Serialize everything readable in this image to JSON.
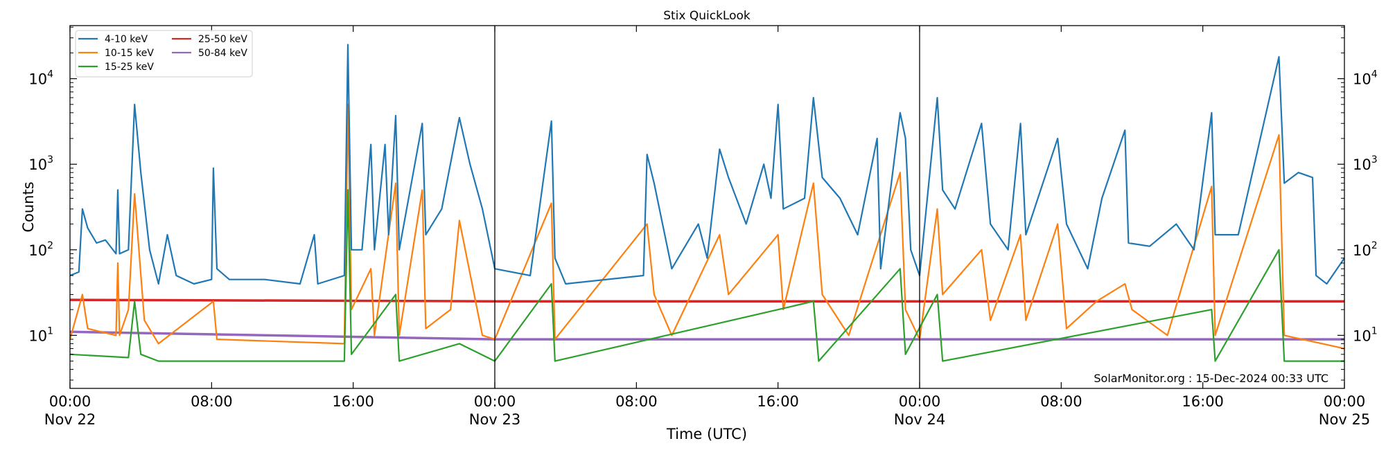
{
  "chart_data": {
    "type": "line",
    "title": "Stix QuickLook",
    "xlabel": "Time (UTC)",
    "ylabel": "Counts",
    "yscale": "log",
    "ylim": [
      2.4,
      41700
    ],
    "xlim": [
      "11-22 00:00",
      "11-25 00:00"
    ],
    "grid": false,
    "legend_placement": "top-left",
    "annotation": "SolarMonitor.org : 15-Dec-2024 00:33 UTC",
    "day_separators": [
      "11-23 00:00",
      "11-24 00:00"
    ],
    "x_ticks": [
      {
        "t": "11-22 00:00",
        "label": "00:00",
        "sub": "Nov 22"
      },
      {
        "t": "11-22 08:00",
        "label": "08:00",
        "sub": ""
      },
      {
        "t": "11-22 16:00",
        "label": "16:00",
        "sub": ""
      },
      {
        "t": "11-23 00:00",
        "label": "00:00",
        "sub": "Nov 23"
      },
      {
        "t": "11-23 08:00",
        "label": "08:00",
        "sub": ""
      },
      {
        "t": "11-23 16:00",
        "label": "16:00",
        "sub": ""
      },
      {
        "t": "11-24 00:00",
        "label": "00:00",
        "sub": "Nov 24"
      },
      {
        "t": "11-24 08:00",
        "label": "08:00",
        "sub": ""
      },
      {
        "t": "11-24 16:00",
        "label": "16:00",
        "sub": ""
      },
      {
        "t": "11-25 00:00",
        "label": "00:00",
        "sub": "Nov 25"
      }
    ],
    "y_ticks": [
      {
        "v": 10,
        "exp": "1"
      },
      {
        "v": 100,
        "exp": "2"
      },
      {
        "v": 1000,
        "exp": "3"
      },
      {
        "v": 10000,
        "exp": "4"
      }
    ],
    "series": [
      {
        "name": "4-10 keV",
        "color": "#1f77b4",
        "points": [
          [
            "11-22 00:00",
            50
          ],
          [
            "11-22 00:30",
            55
          ],
          [
            "11-22 00:42",
            300
          ],
          [
            "11-22 01:00",
            180
          ],
          [
            "11-22 01:30",
            120
          ],
          [
            "11-22 02:00",
            130
          ],
          [
            "11-22 02:36",
            90
          ],
          [
            "11-22 02:42",
            500
          ],
          [
            "11-22 02:48",
            90
          ],
          [
            "11-22 03:18",
            100
          ],
          [
            "11-22 03:39",
            5000
          ],
          [
            "11-22 04:00",
            800
          ],
          [
            "11-22 04:30",
            100
          ],
          [
            "11-22 05:00",
            40
          ],
          [
            "11-22 05:30",
            150
          ],
          [
            "11-22 06:00",
            50
          ],
          [
            "11-22 07:00",
            40
          ],
          [
            "11-22 08:00",
            45
          ],
          [
            "11-22 08:06",
            900
          ],
          [
            "11-22 08:18",
            60
          ],
          [
            "11-22 09:00",
            45
          ],
          [
            "11-22 11:00",
            45
          ],
          [
            "11-22 13:00",
            40
          ],
          [
            "11-22 13:48",
            150
          ],
          [
            "11-22 14:00",
            40
          ],
          [
            "11-22 15:30",
            50
          ],
          [
            "11-22 15:42",
            25000
          ],
          [
            "11-22 15:54",
            100
          ],
          [
            "11-22 16:30",
            100
          ],
          [
            "11-22 17:00",
            1700
          ],
          [
            "11-22 17:12",
            100
          ],
          [
            "11-22 17:48",
            1700
          ],
          [
            "11-22 18:00",
            150
          ],
          [
            "11-22 18:24",
            3700
          ],
          [
            "11-22 18:36",
            100
          ],
          [
            "11-22 19:54",
            3000
          ],
          [
            "11-22 20:06",
            150
          ],
          [
            "11-22 21:00",
            300
          ],
          [
            "11-22 22:00",
            3500
          ],
          [
            "11-22 22:36",
            1000
          ],
          [
            "11-22 23:18",
            300
          ],
          [
            "11-23 00:00",
            60
          ],
          [
            "11-23 02:00",
            50
          ],
          [
            "11-23 03:12",
            3200
          ],
          [
            "11-23 03:24",
            80
          ],
          [
            "11-23 04:00",
            40
          ],
          [
            "11-23 08:24",
            50
          ],
          [
            "11-23 08:36",
            1300
          ],
          [
            "11-23 09:00",
            600
          ],
          [
            "11-23 10:00",
            60
          ],
          [
            "11-23 11:30",
            200
          ],
          [
            "11-23 12:00",
            80
          ],
          [
            "11-23 12:42",
            1500
          ],
          [
            "11-23 13:12",
            700
          ],
          [
            "11-23 14:12",
            200
          ],
          [
            "11-23 15:12",
            1000
          ],
          [
            "11-23 15:36",
            400
          ],
          [
            "11-23 16:00",
            5000
          ],
          [
            "11-23 16:18",
            300
          ],
          [
            "11-23 17:30",
            400
          ],
          [
            "11-23 18:00",
            6000
          ],
          [
            "11-23 18:30",
            700
          ],
          [
            "11-23 19:30",
            400
          ],
          [
            "11-23 20:30",
            150
          ],
          [
            "11-23 21:36",
            2000
          ],
          [
            "11-23 21:48",
            60
          ],
          [
            "11-23 22:54",
            4000
          ],
          [
            "11-23 23:12",
            2000
          ],
          [
            "11-23 23:30",
            100
          ],
          [
            "11-24 00:00",
            50
          ],
          [
            "11-24 01:00",
            6000
          ],
          [
            "11-24 01:18",
            500
          ],
          [
            "11-24 02:00",
            300
          ],
          [
            "11-24 03:30",
            3000
          ],
          [
            "11-24 04:00",
            200
          ],
          [
            "11-24 05:00",
            100
          ],
          [
            "11-24 05:42",
            3000
          ],
          [
            "11-24 06:00",
            150
          ],
          [
            "11-24 07:48",
            2000
          ],
          [
            "11-24 08:18",
            200
          ],
          [
            "11-24 09:30",
            60
          ],
          [
            "11-24 10:18",
            400
          ],
          [
            "11-24 11:36",
            2500
          ],
          [
            "11-24 11:48",
            120
          ],
          [
            "11-24 13:00",
            110
          ],
          [
            "11-24 14:30",
            200
          ],
          [
            "11-24 15:30",
            100
          ],
          [
            "11-24 16:30",
            4000
          ],
          [
            "11-24 16:42",
            150
          ],
          [
            "11-24 18:00",
            150
          ],
          [
            "11-24 20:18",
            18000
          ],
          [
            "11-24 20:36",
            600
          ],
          [
            "11-24 21:24",
            800
          ],
          [
            "11-24 22:12",
            700
          ],
          [
            "11-24 22:24",
            50
          ],
          [
            "11-24 23:00",
            40
          ],
          [
            "11-25 00:00",
            80
          ]
        ]
      },
      {
        "name": "10-15 keV",
        "color": "#ff7f0e",
        "points": [
          [
            "11-22 00:00",
            9
          ],
          [
            "11-22 00:42",
            30
          ],
          [
            "11-22 01:00",
            12
          ],
          [
            "11-22 02:36",
            10
          ],
          [
            "11-22 02:42",
            70
          ],
          [
            "11-22 02:48",
            10
          ],
          [
            "11-22 03:18",
            20
          ],
          [
            "11-22 03:39",
            450
          ],
          [
            "11-22 04:12",
            15
          ],
          [
            "11-22 05:00",
            8
          ],
          [
            "11-22 08:06",
            25
          ],
          [
            "11-22 08:18",
            9
          ],
          [
            "11-22 15:30",
            8
          ],
          [
            "11-22 15:42",
            5000
          ],
          [
            "11-22 15:54",
            20
          ],
          [
            "11-22 17:00",
            60
          ],
          [
            "11-22 17:12",
            10
          ],
          [
            "11-22 18:24",
            600
          ],
          [
            "11-22 18:36",
            10
          ],
          [
            "11-22 19:54",
            500
          ],
          [
            "11-22 20:06",
            12
          ],
          [
            "11-22 21:30",
            20
          ],
          [
            "11-22 22:00",
            220
          ],
          [
            "11-22 23:18",
            10
          ],
          [
            "11-23 00:00",
            9
          ],
          [
            "11-23 03:12",
            350
          ],
          [
            "11-23 03:24",
            9
          ],
          [
            "11-23 08:36",
            200
          ],
          [
            "11-23 09:00",
            30
          ],
          [
            "11-23 10:00",
            10
          ],
          [
            "11-23 12:42",
            150
          ],
          [
            "11-23 13:12",
            30
          ],
          [
            "11-23 16:00",
            150
          ],
          [
            "11-23 16:18",
            20
          ],
          [
            "11-23 18:00",
            600
          ],
          [
            "11-23 18:30",
            30
          ],
          [
            "11-23 20:00",
            10
          ],
          [
            "11-23 22:54",
            800
          ],
          [
            "11-23 23:12",
            20
          ],
          [
            "11-24 00:00",
            9
          ],
          [
            "11-24 01:00",
            300
          ],
          [
            "11-24 01:18",
            30
          ],
          [
            "11-24 03:30",
            100
          ],
          [
            "11-24 04:00",
            15
          ],
          [
            "11-24 05:42",
            150
          ],
          [
            "11-24 06:00",
            15
          ],
          [
            "11-24 07:48",
            200
          ],
          [
            "11-24 08:18",
            12
          ],
          [
            "11-24 10:00",
            25
          ],
          [
            "11-24 11:36",
            40
          ],
          [
            "11-24 12:00",
            20
          ],
          [
            "11-24 14:00",
            10
          ],
          [
            "11-24 16:30",
            550
          ],
          [
            "11-24 16:42",
            10
          ],
          [
            "11-24 20:18",
            2200
          ],
          [
            "11-24 20:36",
            10
          ],
          [
            "11-25 00:00",
            7
          ]
        ]
      },
      {
        "name": "15-25 keV",
        "color": "#2ca02c",
        "points": [
          [
            "11-22 00:00",
            6
          ],
          [
            "11-22 03:18",
            5.5
          ],
          [
            "11-22 03:39",
            25
          ],
          [
            "11-22 04:00",
            6
          ],
          [
            "11-22 05:00",
            5
          ],
          [
            "11-22 15:30",
            5
          ],
          [
            "11-22 15:42",
            500
          ],
          [
            "11-22 15:54",
            6
          ],
          [
            "11-22 18:24",
            30
          ],
          [
            "11-22 18:36",
            5
          ],
          [
            "11-22 22:00",
            8
          ],
          [
            "11-23 00:00",
            5
          ],
          [
            "11-23 03:12",
            40
          ],
          [
            "11-23 03:24",
            5
          ],
          [
            "11-23 16:00",
            20
          ],
          [
            "11-23 18:00",
            25
          ],
          [
            "11-23 18:18",
            5
          ],
          [
            "11-23 22:54",
            60
          ],
          [
            "11-23 23:12",
            6
          ],
          [
            "11-24 01:00",
            30
          ],
          [
            "11-24 01:18",
            5
          ],
          [
            "11-24 16:30",
            20
          ],
          [
            "11-24 16:42",
            5
          ],
          [
            "11-24 20:18",
            100
          ],
          [
            "11-24 20:36",
            5
          ],
          [
            "11-25 00:00",
            5
          ]
        ]
      },
      {
        "name": "25-50 keV",
        "color": "#d62728",
        "points": [
          [
            "11-22 00:00",
            26
          ],
          [
            "11-23 00:00",
            25
          ],
          [
            "11-25 00:00",
            25
          ]
        ]
      },
      {
        "name": "50-84 keV",
        "color": "#9467bd",
        "points": [
          [
            "11-22 00:00",
            11
          ],
          [
            "11-23 00:00",
            9
          ],
          [
            "11-25 00:00",
            9
          ]
        ]
      }
    ]
  }
}
